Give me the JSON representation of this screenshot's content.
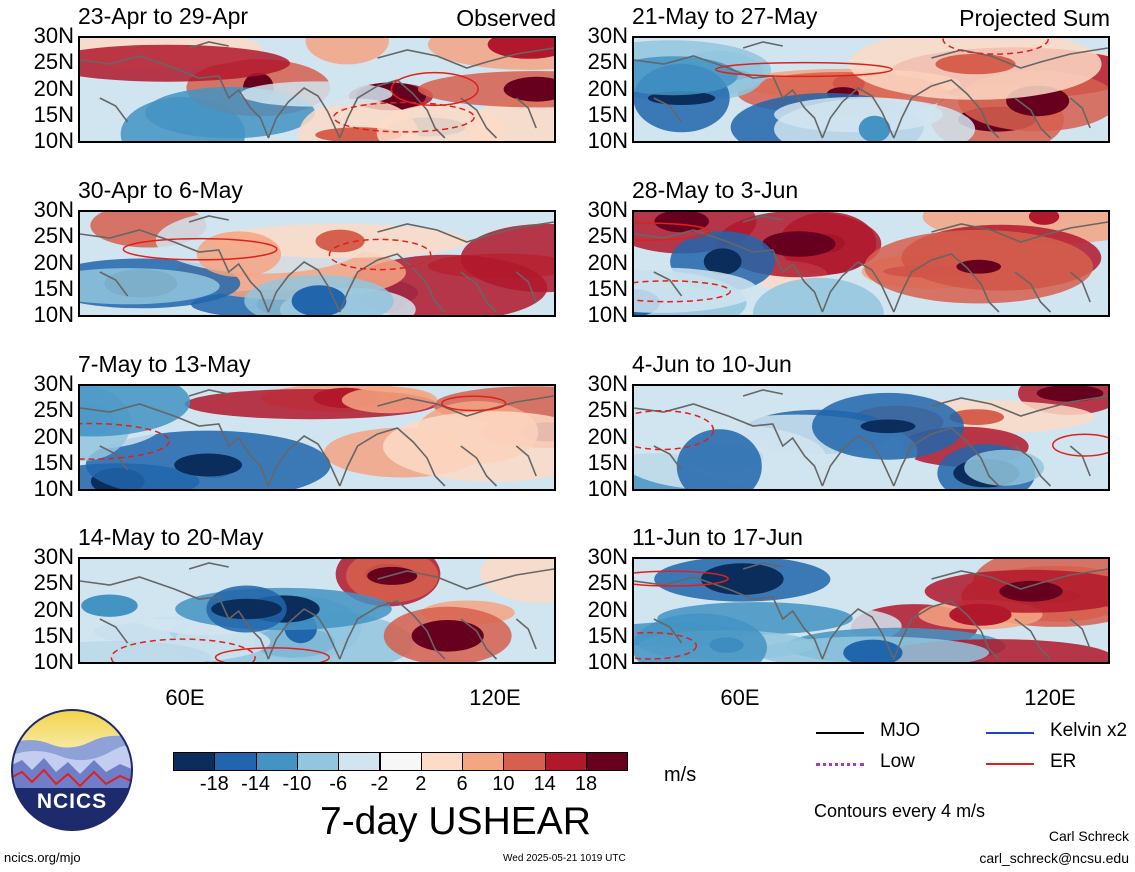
{
  "panels": [
    {
      "title": "23-Apr to 29-Apr",
      "corner": "Observed",
      "seed": 3
    },
    {
      "title": "21-May to 27-May",
      "corner": "Projected Sum",
      "seed": 11
    },
    {
      "title": "30-Apr to 6-May",
      "corner": "",
      "seed": 5
    },
    {
      "title": "28-May to 3-Jun",
      "corner": "",
      "seed": 13
    },
    {
      "title": "7-May to 13-May",
      "corner": "",
      "seed": 7
    },
    {
      "title": "4-Jun to 10-Jun",
      "corner": "",
      "seed": 17
    },
    {
      "title": "14-May to 20-May",
      "corner": "",
      "seed": 9
    },
    {
      "title": "11-Jun to 17-Jun",
      "corner": "",
      "seed": 19
    }
  ],
  "y_ticks": [
    "30N",
    "25N",
    "20N",
    "15N",
    "10N"
  ],
  "x_ticks": [
    "60E",
    "120E"
  ],
  "colorbar": {
    "colors": [
      "#0b2d5b",
      "#2166ac",
      "#4393c3",
      "#92c5de",
      "#d1e5f0",
      "#f7f7f7",
      "#fddbc7",
      "#f4a582",
      "#d6604d",
      "#b2182b",
      "#67001f"
    ],
    "labels": [
      "-18",
      "-14",
      "-10",
      "-6",
      "-2",
      "2",
      "6",
      "10",
      "14",
      "18"
    ],
    "units": "m/s"
  },
  "variable_title": "7-day USHEAR",
  "legend": [
    {
      "label": "MJO",
      "color": "#000000",
      "style": "solid"
    },
    {
      "label": "Kelvin x2",
      "color": "#1f3fd6",
      "style": "solid"
    },
    {
      "label": "Low",
      "color": "#a040c0",
      "style": "dotted"
    },
    {
      "label": "ER",
      "color": "#e0201a",
      "style": "solid"
    }
  ],
  "contour_note": "Contours every 4 m/s",
  "logo_text": "NCICS",
  "footer": {
    "left": "ncics.org/mjo",
    "center": "Wed 2025-05-21 1019 UTC",
    "author": "Carl Schreck",
    "email": "carl_schreck@ncsu.edu"
  }
}
